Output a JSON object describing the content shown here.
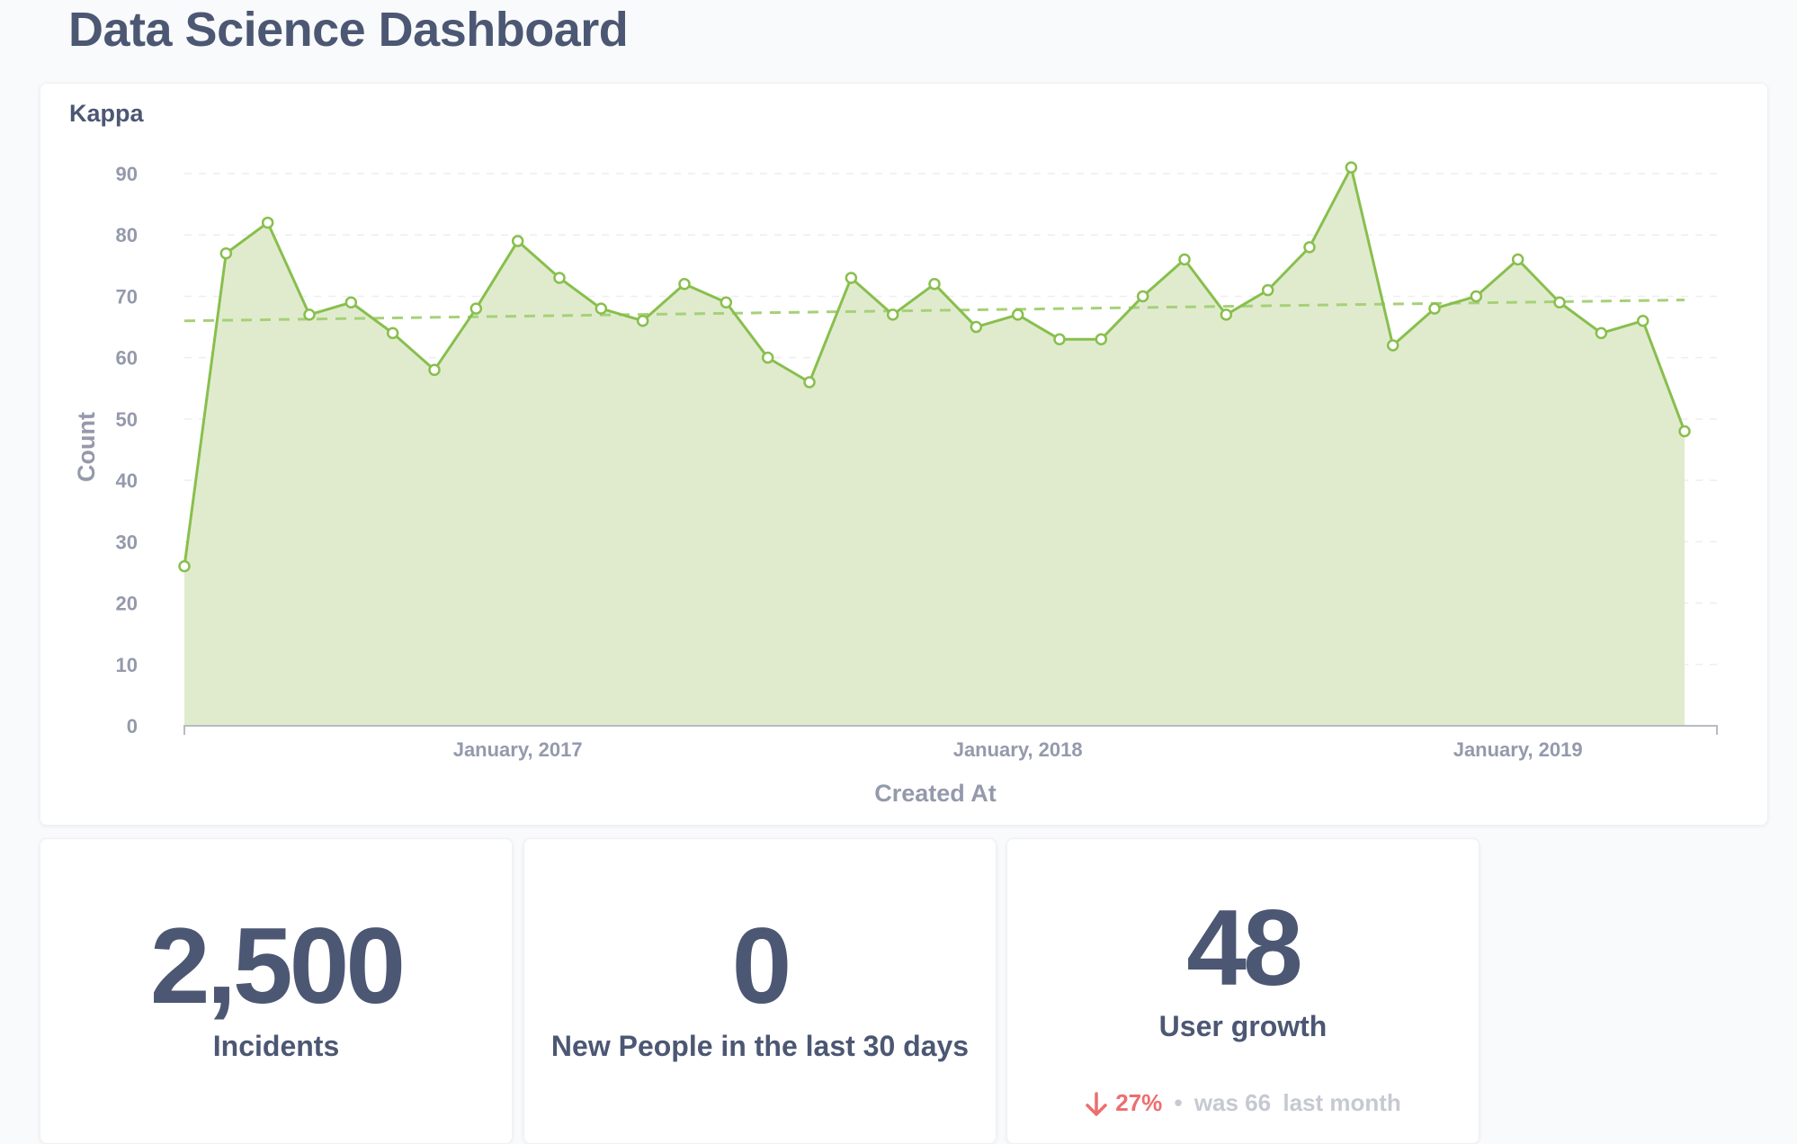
{
  "dashboard": {
    "title": "Data Science Dashboard"
  },
  "colors": {
    "accent": "#88bf4d",
    "fill": "#deeacb",
    "text": "#4c5773",
    "muted": "#949aab",
    "down": "#ed6e6e"
  },
  "chart_card": {
    "title": "Kappa"
  },
  "chart_data": {
    "type": "area",
    "title": "Kappa",
    "xlabel": "Created At",
    "ylabel": "Count",
    "ylim": [
      0,
      90
    ],
    "yticks": [
      0,
      10,
      20,
      30,
      40,
      50,
      60,
      70,
      80,
      90
    ],
    "x_tick_labels": [
      {
        "label": "January, 2017",
        "month_index": 8
      },
      {
        "label": "January, 2018",
        "month_index": 20
      },
      {
        "label": "January, 2019",
        "month_index": 32
      }
    ],
    "series": [
      {
        "name": "Count",
        "values": [
          26,
          77,
          82,
          67,
          69,
          64,
          58,
          68,
          79,
          73,
          68,
          66,
          72,
          69,
          60,
          56,
          73,
          67,
          72,
          65,
          67,
          63,
          63,
          70,
          76,
          67,
          71,
          78,
          91,
          62,
          68,
          70,
          76,
          69,
          64,
          66,
          48
        ]
      }
    ],
    "trend_line": {
      "start": 66,
      "end": 69.4,
      "style": "dashed"
    }
  },
  "scalars": [
    {
      "value": "2,500",
      "label": "Incidents"
    },
    {
      "value": "0",
      "label": "New People in the last 30 days"
    },
    {
      "value": "48",
      "label": "User growth",
      "trend": {
        "direction": "down-arrow-icon",
        "percent": "27%",
        "separator": "•",
        "was_text": "was 66",
        "period": "last month"
      }
    }
  ]
}
